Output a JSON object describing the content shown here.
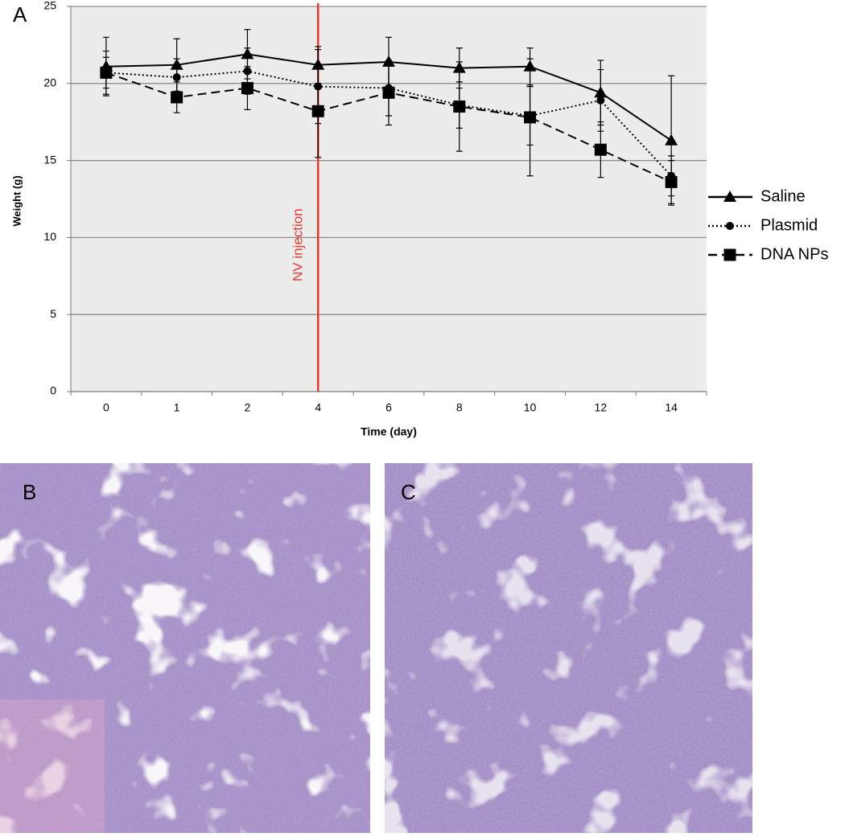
{
  "panel_labels": [
    "A",
    "B",
    "C"
  ],
  "chart_data": {
    "type": "line",
    "x_label": "Time (day)",
    "y_label": "Weight (g)",
    "categories": [
      "0",
      "1",
      "2",
      "4",
      "6",
      "8",
      "10",
      "12",
      "14"
    ],
    "ylim": [
      0,
      25
    ],
    "yticks": [
      0,
      5,
      10,
      15,
      20,
      25
    ],
    "grid": true,
    "legend": "right",
    "annotation": {
      "text": "NV injection",
      "x": "4",
      "color": "#e8372c"
    },
    "series": [
      {
        "name": "Saline",
        "color": "#000000",
        "line_style": "solid",
        "marker": "triangle",
        "values": [
          21.1,
          21.2,
          21.9,
          21.2,
          21.4,
          21.0,
          21.1,
          19.4,
          16.3
        ],
        "errors": [
          1.9,
          1.7,
          1.6,
          1.2,
          1.6,
          1.3,
          1.2,
          2.1,
          4.2
        ]
      },
      {
        "name": "Plasmid",
        "color": "#000000",
        "line_style": "dotted",
        "marker": "circle",
        "values": [
          20.7,
          20.4,
          20.8,
          19.8,
          19.7,
          18.6,
          17.9,
          18.9,
          14.0
        ],
        "errors": [
          1.0,
          1.2,
          1.5,
          2.4,
          1.8,
          1.5,
          1.9,
          2.0,
          1.3
        ]
      },
      {
        "name": "DNA NPs",
        "color": "#000000",
        "line_style": "dashed",
        "marker": "square",
        "values": [
          20.7,
          19.1,
          19.7,
          18.2,
          19.4,
          18.5,
          17.8,
          15.7,
          13.6
        ],
        "errors": [
          1.4,
          1.0,
          1.4,
          3.0,
          2.1,
          2.9,
          3.8,
          1.8,
          1.4
        ]
      }
    ]
  }
}
